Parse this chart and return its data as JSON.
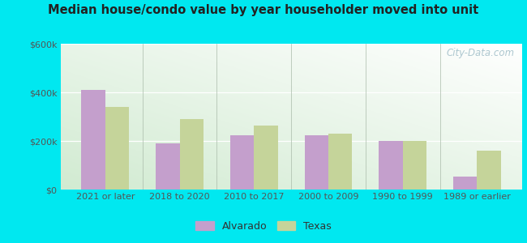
{
  "title": "Median house/condo value by year householder moved into unit",
  "categories": [
    "2021 or later",
    "2018 to 2020",
    "2010 to 2017",
    "2000 to 2009",
    "1990 to 1999",
    "1989 or earlier"
  ],
  "alvarado": [
    410000,
    190000,
    225000,
    225000,
    200000,
    55000
  ],
  "texas": [
    340000,
    290000,
    265000,
    230000,
    200000,
    160000
  ],
  "ylim": [
    0,
    600000
  ],
  "yticks": [
    0,
    200000,
    400000,
    600000
  ],
  "ytick_labels": [
    "$0",
    "$200k",
    "$400k",
    "$600k"
  ],
  "alvarado_color": "#c49fcc",
  "texas_color": "#c5d49a",
  "background_outer": "#00e8f0",
  "watermark": "City-Data.com",
  "legend_alvarado": "Alvarado",
  "legend_texas": "Texas",
  "bar_width": 0.32
}
